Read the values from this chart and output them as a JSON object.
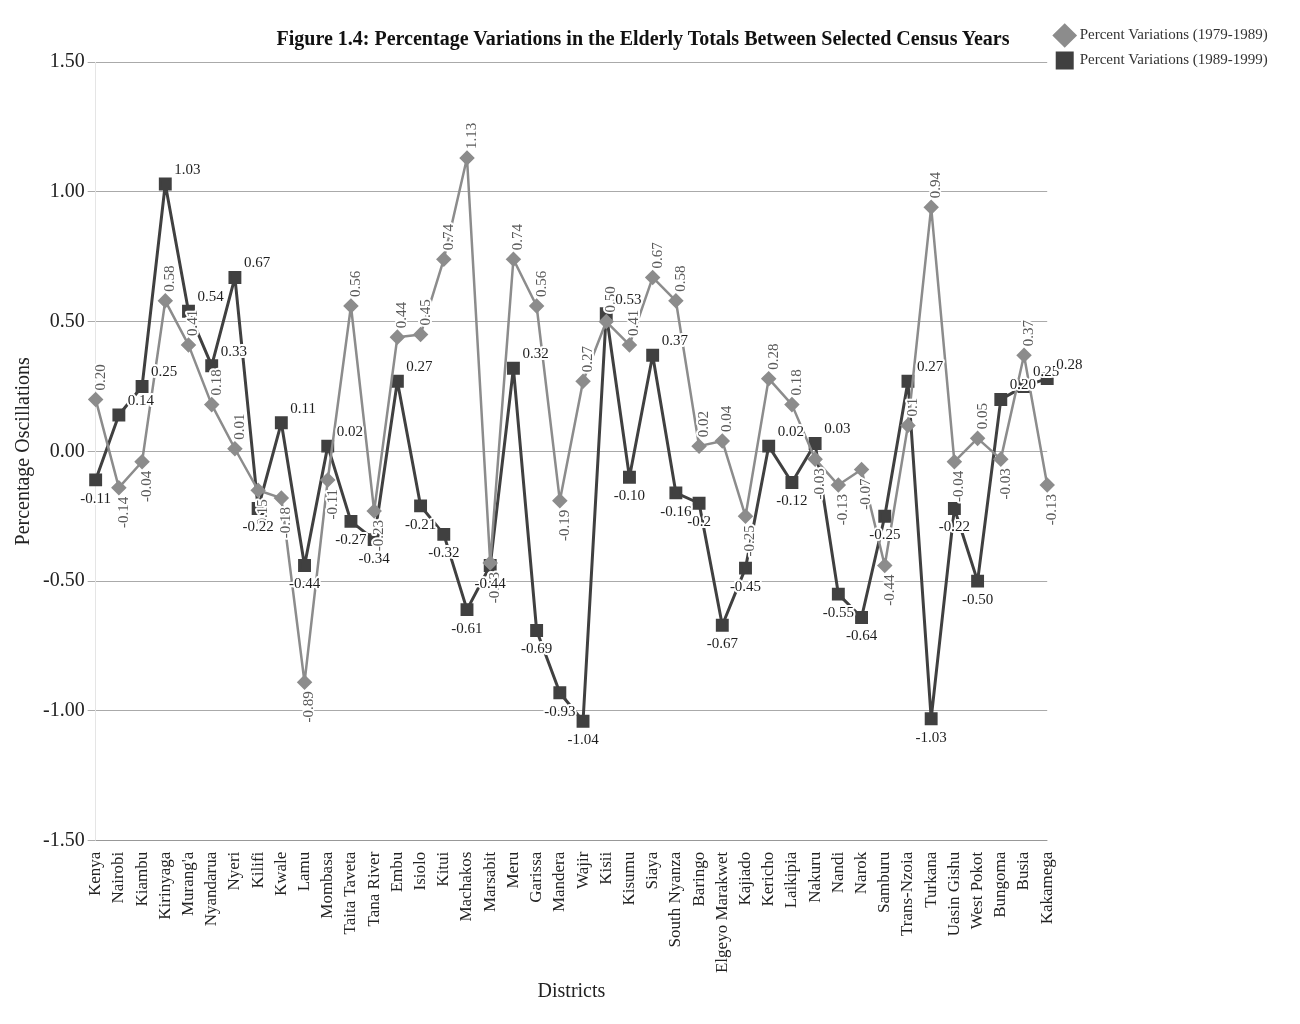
{
  "chart_data": {
    "type": "line",
    "title": "Figure 1.4: Percentage Variations in the Elderly Totals Between Selected Census Years",
    "xlabel": "Districts",
    "ylabel": "Percentage Oscillations",
    "categories": [
      "Kenya",
      "Nairobi",
      "Kiambu",
      "Kirinyaga",
      "Murang'a",
      "Nyandarua",
      "Nyeri",
      "Kilifi",
      "Kwale",
      "Lamu",
      "Mombasa",
      "Taita Taveta",
      "Tana River",
      "Embu",
      "Isiolo",
      "Kitui",
      "Machakos",
      "Marsabit",
      "Meru",
      "Garissa",
      "Mandera",
      "Wajir",
      "Kisii",
      "Kisumu",
      "Siaya",
      "South Nyanza",
      "Baringo",
      "Elgeyo Marakwet",
      "Kajiado",
      "Kericho",
      "Laikipia",
      "Nakuru",
      "Nandi",
      "Narok",
      "Samburu",
      "Trans-Nzoia",
      "Turkana",
      "Uasin Gishu",
      "West Pokot",
      "Bungoma",
      "Busia",
      "Kakamega"
    ],
    "series": [
      {
        "name": "Percent Variations (1979-1989)",
        "color": "#8c8c8c",
        "marker": "diamond",
        "values": [
          0.2,
          -0.14,
          -0.04,
          0.58,
          0.41,
          0.18,
          0.01,
          -0.15,
          -0.18,
          -0.89,
          -0.11,
          0.56,
          -0.23,
          0.44,
          0.45,
          0.74,
          1.13,
          -0.43,
          0.74,
          0.56,
          -0.19,
          0.27,
          0.5,
          0.41,
          0.67,
          0.58,
          0.02,
          0.04,
          -0.25,
          0.28,
          0.18,
          -0.03,
          -0.13,
          -0.07,
          -0.44,
          0.1,
          0.94,
          -0.04,
          0.05,
          -0.03,
          0.37,
          -0.13
        ],
        "value_labels": [
          "0.20",
          "-0.14",
          "-0.04",
          "0.58",
          "0.41",
          "0.18",
          "0.01",
          "-0.15",
          "-0.18",
          "-0.89",
          "-0.11",
          "0.56",
          "-0.23",
          "0.44",
          "0.45",
          "0.74",
          "1.13",
          "-0.43",
          "0.74",
          "0.56",
          "-0.19",
          "0.27",
          "0.50",
          "0.41",
          "0.67",
          "0.58",
          "0.02",
          "0.04",
          "-0.25",
          "0.28",
          "0.18",
          "-0.03",
          "-0.13",
          "-0.07",
          "-0.44",
          "0.1",
          "0.94",
          "-0.04",
          "0.05",
          "-0.03",
          "0.37",
          "-0.13"
        ]
      },
      {
        "name": "Percent Variations (1989-1999)",
        "color": "#404040",
        "marker": "square",
        "values": [
          -0.11,
          0.14,
          0.25,
          1.03,
          0.54,
          0.33,
          0.67,
          -0.22,
          0.11,
          -0.44,
          0.02,
          -0.27,
          -0.34,
          0.27,
          -0.21,
          -0.32,
          -0.61,
          -0.44,
          0.32,
          -0.69,
          -0.93,
          -1.04,
          0.53,
          -0.1,
          0.37,
          -0.16,
          -0.2,
          -0.67,
          -0.45,
          0.02,
          -0.12,
          0.03,
          -0.55,
          -0.64,
          -0.25,
          0.27,
          -1.03,
          -0.22,
          -0.5,
          0.2,
          0.25,
          0.28
        ],
        "value_labels": [
          "-0.11",
          "0.14",
          "0.25",
          "1.03",
          "0.54",
          "0.33",
          "0.67",
          "-0.22",
          "0.11",
          "-0.44",
          "0.02",
          "-0.27",
          "-0.34",
          "0.27",
          "-0.21",
          "-0.32",
          "-0.61",
          "-0.44",
          "0.32",
          "-0.69",
          "-0.93",
          "-1.04",
          "0.53",
          "-0.10",
          "0.37",
          "-0.16",
          "-0.2",
          "-0.67",
          "-0.45",
          "0.02",
          "-0.12",
          "0.03",
          "-0.55",
          "-0.64",
          "-0.25",
          "0.27",
          "-1.03",
          "-0.22",
          "-0.50",
          "0.20",
          "0.25",
          "0.28"
        ]
      }
    ],
    "ylim": [
      -1.5,
      1.5
    ],
    "yticks": [
      {
        "value": -1.5,
        "label": "-1.50"
      },
      {
        "value": -1,
        "label": "-1.00"
      },
      {
        "value": -0.5,
        "label": "-0.50"
      },
      {
        "value": 0,
        "label": "0.00"
      },
      {
        "value": 0.5,
        "label": "0.50"
      },
      {
        "value": 1,
        "label": "1.00"
      },
      {
        "value": 1.5,
        "label": "1.50"
      }
    ],
    "grid": "y",
    "legend": "top right",
    "line_style": "solid"
  }
}
